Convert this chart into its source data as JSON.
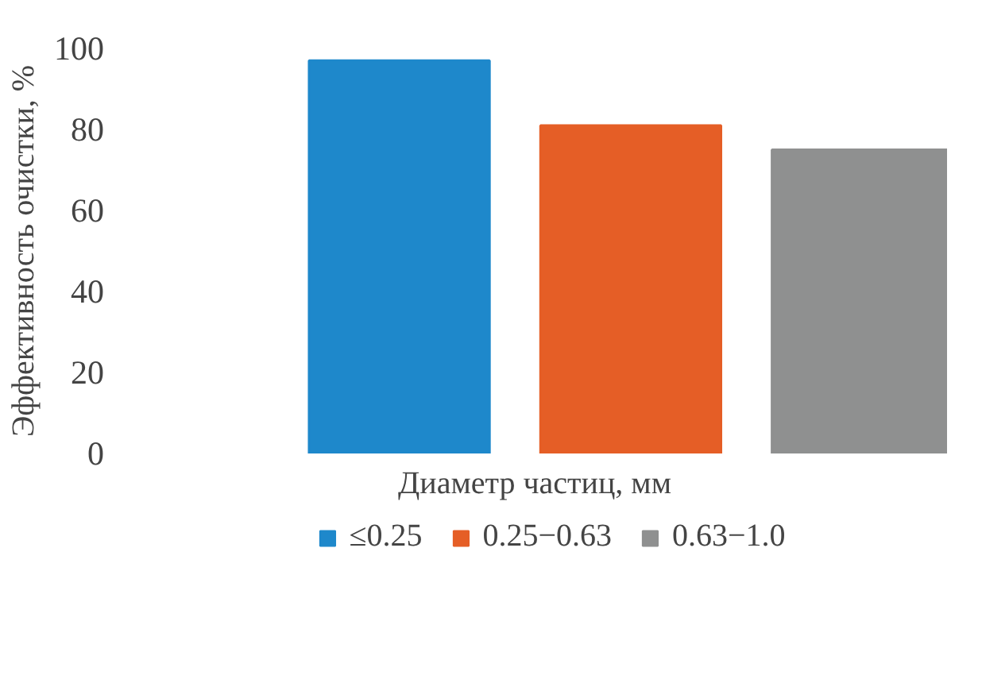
{
  "chart_data": {
    "type": "bar",
    "xlabel": "Диаметр частиц, мм",
    "ylabel": "Эффективность очистки, %",
    "categories": [
      null
    ],
    "series": [
      {
        "name": "≤0.25",
        "color": "#1e88cb",
        "values": [
          97
        ]
      },
      {
        "name": "0.25−0.63",
        "color": "#e55e26",
        "values": [
          81
        ]
      },
      {
        "name": "0.63−1.0",
        "color": "#8f9090",
        "values": [
          75
        ]
      }
    ],
    "ylim": [
      0,
      100
    ],
    "yticks": [
      0,
      20,
      40,
      60,
      80,
      100
    ],
    "grid": false,
    "legend": "bottom",
    "tick_labels": "y"
  }
}
